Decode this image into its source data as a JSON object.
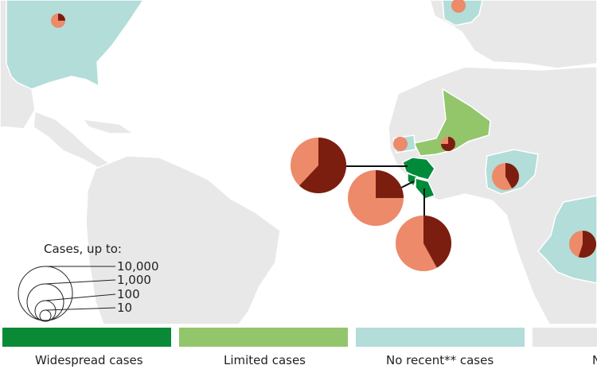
{
  "colors": {
    "ocean": "#ffffff",
    "land": "#e8e8e8",
    "border": "#ffffff",
    "widespread": "#008a3a",
    "limited": "#93c56b",
    "no_recent": "#b2ddd9",
    "none": "#e6e6e6",
    "deaths": "#7b1e10",
    "cases": "#ec8a6a"
  },
  "size_legend": {
    "title": "Cases, up to:",
    "levels": [
      "10,000",
      "1,000",
      "100",
      "10"
    ]
  },
  "legend": [
    {
      "label": "Widespread cases",
      "color": "#0a8a36"
    },
    {
      "label": "Limited cases",
      "color": "#93c56b"
    },
    {
      "label": "No recent** cases",
      "color": "#b2ddd9"
    },
    {
      "label": "N",
      "color": "#e6e6e6"
    }
  ],
  "countries": {
    "usa": "no_recent",
    "spain": "no_recent",
    "mali": "limited",
    "senegal": "no_recent",
    "nigeria": "no_recent",
    "drc": "no_recent",
    "guinea": "widespread",
    "sierra_leone": "widespread",
    "liberia": "widespread"
  },
  "pies": [
    {
      "id": "usa",
      "deaths_share": 0.25
    },
    {
      "id": "spain",
      "deaths_share": 0.0
    },
    {
      "id": "senegal",
      "deaths_share": 0.0
    },
    {
      "id": "mali",
      "deaths_share": 0.75
    },
    {
      "id": "nigeria",
      "deaths_share": 0.42
    },
    {
      "id": "guinea",
      "deaths_share": 0.62
    },
    {
      "id": "sierra-leone",
      "deaths_share": 0.25
    },
    {
      "id": "liberia",
      "deaths_share": 0.42
    },
    {
      "id": "drc",
      "deaths_share": 0.55
    }
  ]
}
